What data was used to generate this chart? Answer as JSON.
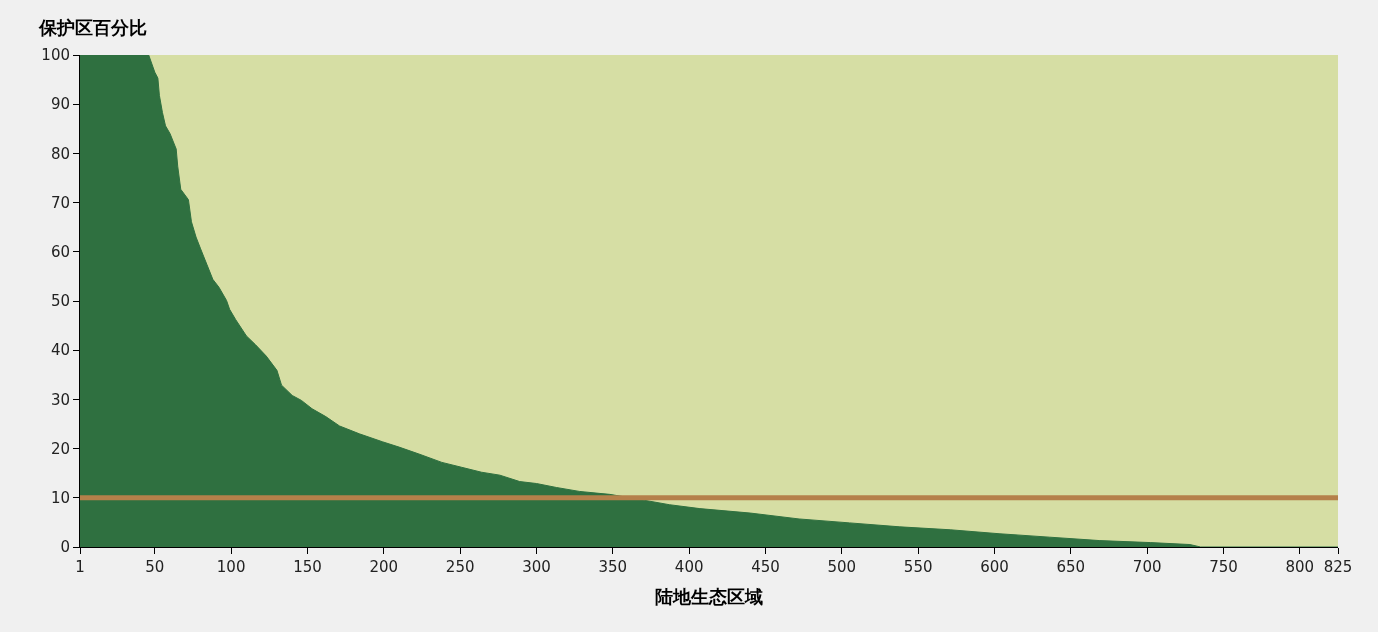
{
  "chart_data": {
    "type": "area",
    "xlabel": "陆地生态区域",
    "ylabel": "保护区百分比",
    "x": [
      1,
      46,
      50,
      52,
      53,
      55,
      57,
      60,
      64,
      65,
      67,
      72,
      74,
      77,
      80,
      84,
      88,
      92,
      97,
      99,
      103,
      110,
      116,
      123,
      130,
      133,
      140,
      146,
      153,
      162,
      171,
      184,
      199,
      210,
      223,
      238,
      251,
      264,
      276,
      289,
      300,
      313,
      328,
      341,
      348,
      367,
      387,
      407,
      440,
      472,
      505,
      538,
      571,
      603,
      636,
      669,
      702,
      728,
      735,
      825
    ],
    "series": [
      {
        "color": "#2f7040",
        "values": [
          100,
          100,
          96.5,
          95.3,
          91.8,
          88.3,
          85.6,
          84,
          80.9,
          77.4,
          72.7,
          70.6,
          66.1,
          63,
          60.6,
          57.5,
          54.4,
          52.8,
          50.1,
          48.3,
          46.2,
          42.9,
          41.1,
          38.8,
          35.9,
          32.9,
          30.8,
          29.8,
          28.1,
          26.5,
          24.6,
          23,
          21.4,
          20.3,
          18.9,
          17.2,
          16.2,
          15.2,
          14.6,
          13.3,
          12.9,
          12.1,
          11.3,
          10.9,
          10.7,
          9.7,
          8.6,
          7.8,
          6.9,
          5.7,
          4.9,
          4.1,
          3.5,
          2.7,
          2,
          1.3,
          0.9,
          0.5,
          0,
          0
        ]
      }
    ],
    "xlim": [
      1,
      825
    ],
    "xticks": [
      1,
      50,
      100,
      150,
      200,
      250,
      300,
      350,
      400,
      450,
      500,
      550,
      600,
      650,
      700,
      750,
      800,
      825
    ],
    "ylim": [
      0,
      100
    ],
    "yticks": [
      0,
      10,
      20,
      30,
      40,
      50,
      60,
      70,
      80,
      90,
      100
    ],
    "ref_lines": [
      {
        "axis": "y",
        "value": 10,
        "color": "#b5804a"
      }
    ],
    "grid": false
  }
}
